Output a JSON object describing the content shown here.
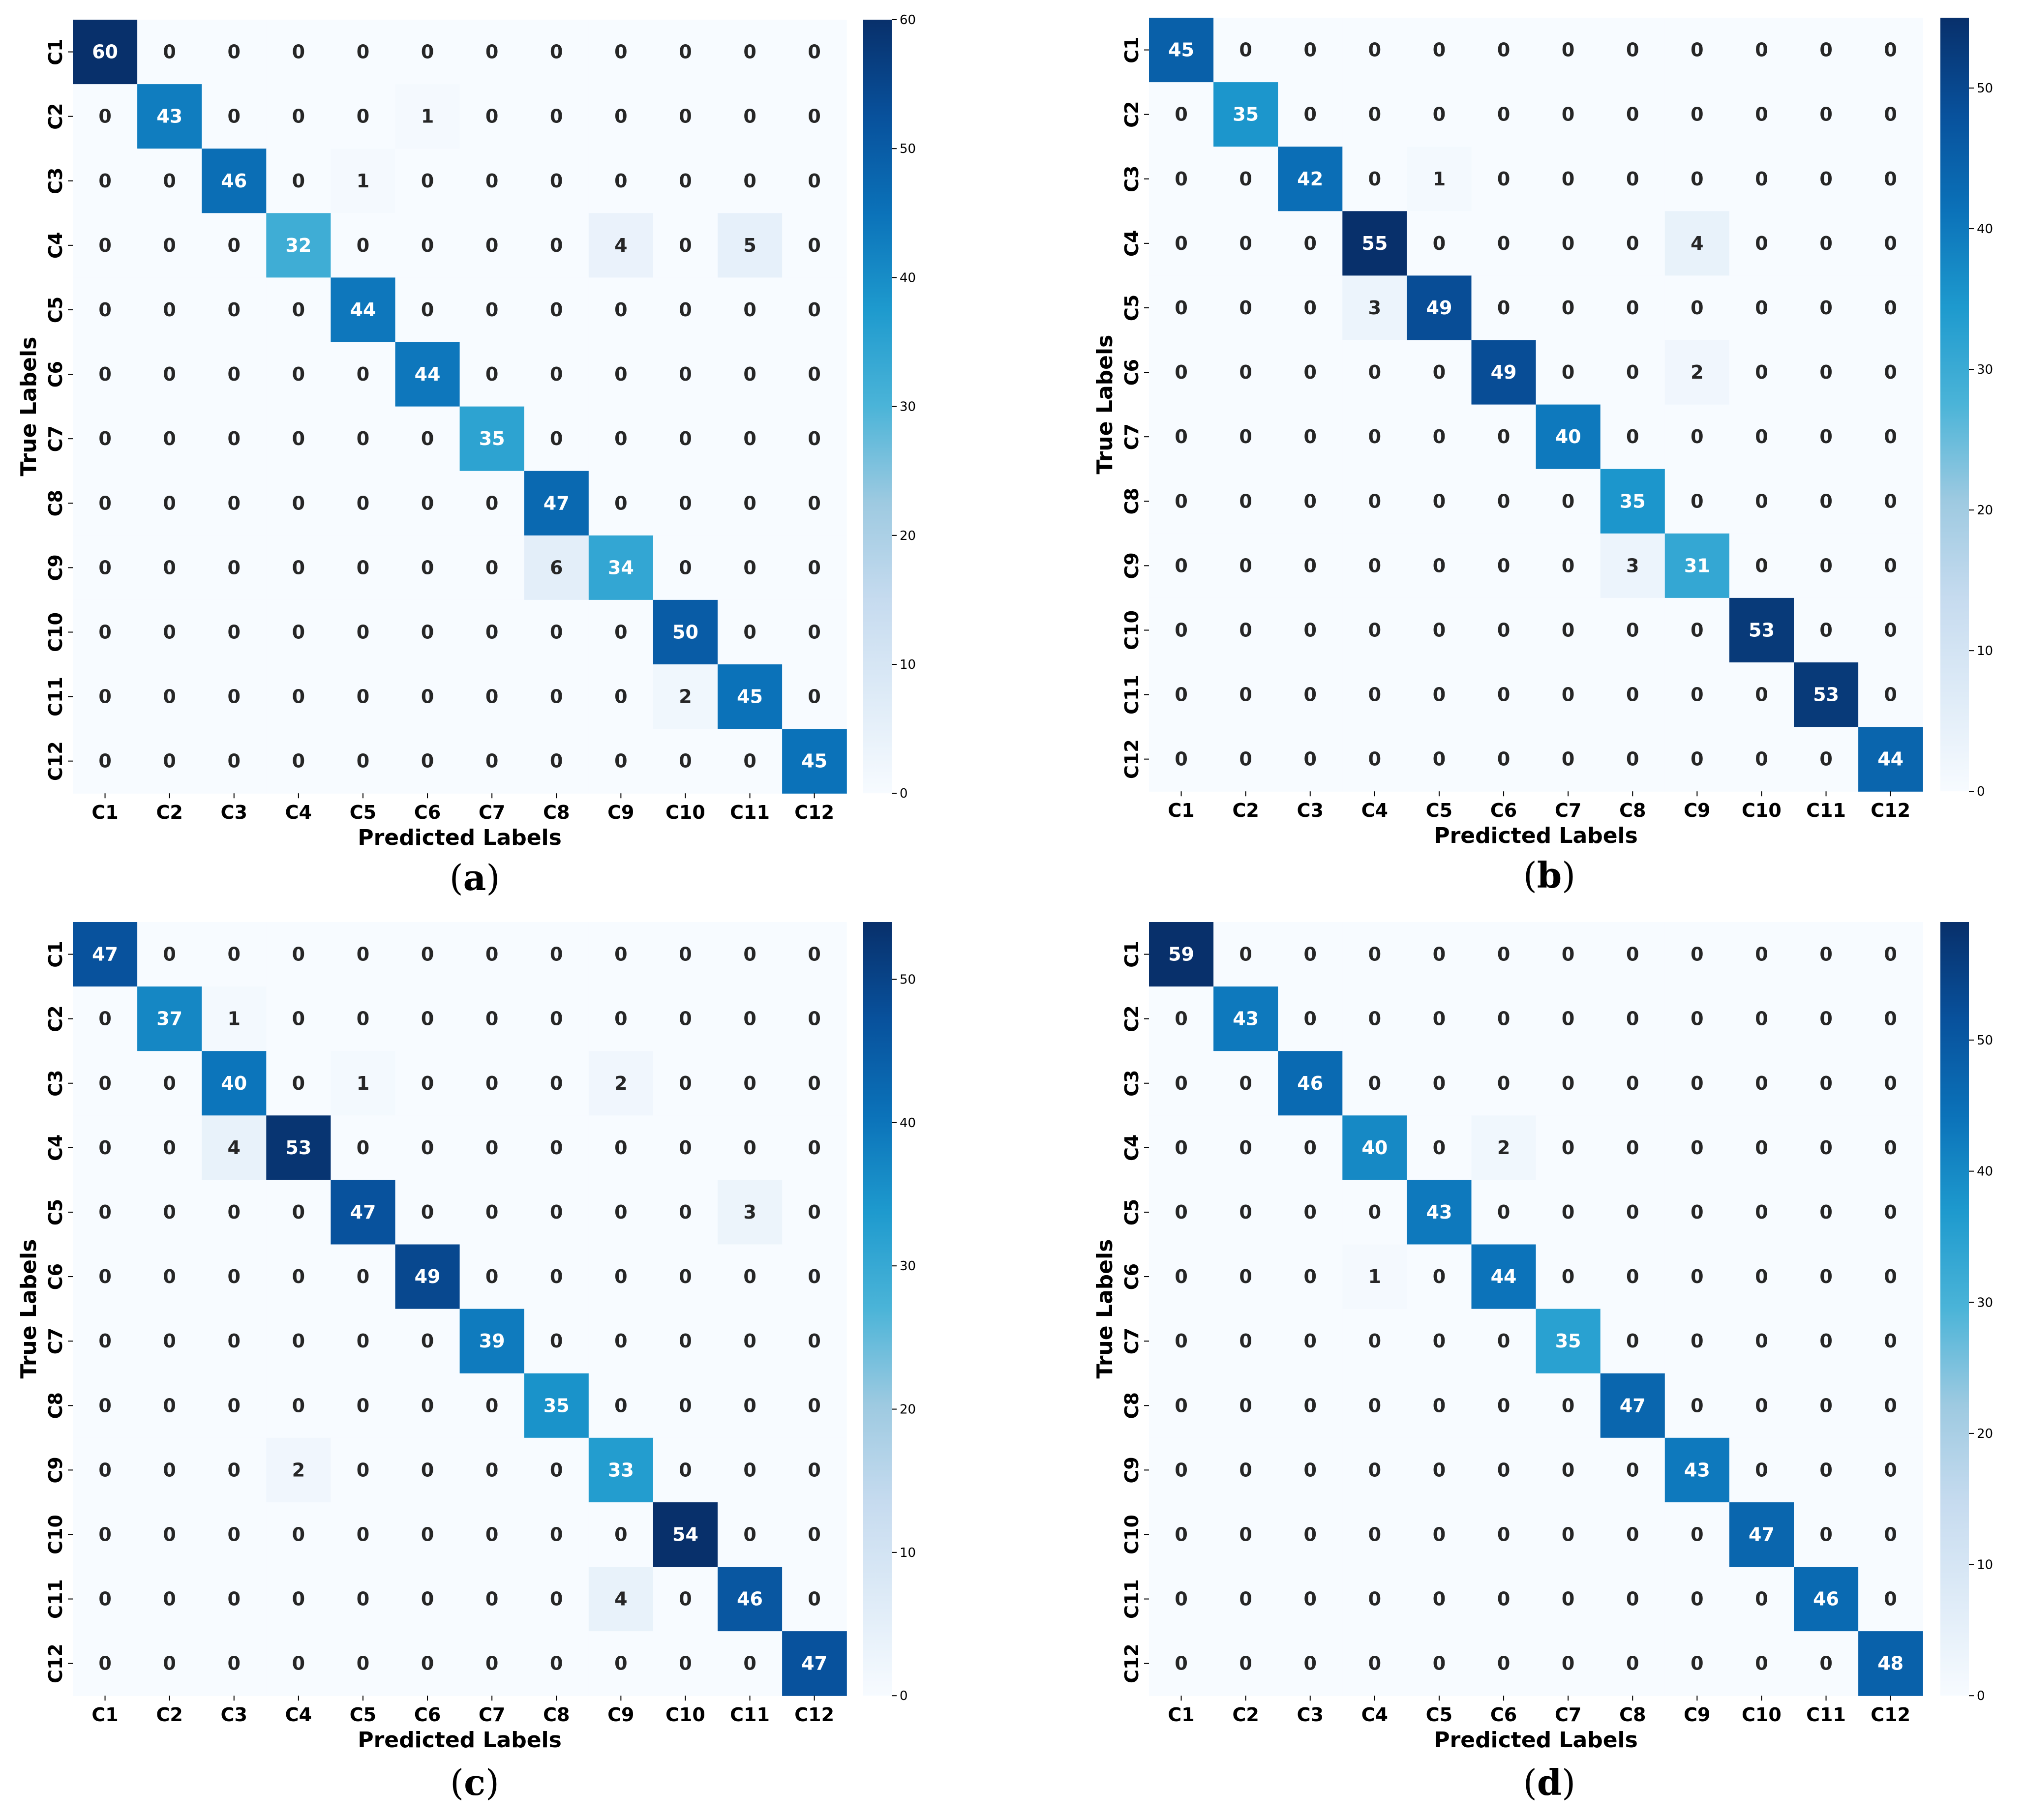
{
  "chart_data": [
    {
      "type": "heatmap",
      "caption_letter": "a",
      "xlabel": "Predicted Labels",
      "ylabel": "True Labels",
      "x_categories": [
        "C1",
        "C2",
        "C3",
        "C4",
        "C5",
        "C6",
        "C7",
        "C8",
        "C9",
        "C10",
        "C11",
        "C12"
      ],
      "y_categories": [
        "C1",
        "C2",
        "C3",
        "C4",
        "C5",
        "C6",
        "C7",
        "C8",
        "C9",
        "C10",
        "C11",
        "C12"
      ],
      "matrix": [
        [
          60,
          0,
          0,
          0,
          0,
          0,
          0,
          0,
          0,
          0,
          0,
          0
        ],
        [
          0,
          43,
          0,
          0,
          0,
          1,
          0,
          0,
          0,
          0,
          0,
          0
        ],
        [
          0,
          0,
          46,
          0,
          1,
          0,
          0,
          0,
          0,
          0,
          0,
          0
        ],
        [
          0,
          0,
          0,
          32,
          0,
          0,
          0,
          0,
          4,
          0,
          5,
          0
        ],
        [
          0,
          0,
          0,
          0,
          44,
          0,
          0,
          0,
          0,
          0,
          0,
          0
        ],
        [
          0,
          0,
          0,
          0,
          0,
          44,
          0,
          0,
          0,
          0,
          0,
          0
        ],
        [
          0,
          0,
          0,
          0,
          0,
          0,
          35,
          0,
          0,
          0,
          0,
          0
        ],
        [
          0,
          0,
          0,
          0,
          0,
          0,
          0,
          47,
          0,
          0,
          0,
          0
        ],
        [
          0,
          0,
          0,
          0,
          0,
          0,
          0,
          6,
          34,
          0,
          0,
          0
        ],
        [
          0,
          0,
          0,
          0,
          0,
          0,
          0,
          0,
          0,
          50,
          0,
          0
        ],
        [
          0,
          0,
          0,
          0,
          0,
          0,
          0,
          0,
          0,
          2,
          45,
          0
        ],
        [
          0,
          0,
          0,
          0,
          0,
          0,
          0,
          0,
          0,
          0,
          0,
          45
        ]
      ],
      "colorbar": {
        "range": [
          0,
          60
        ],
        "ticks": [
          0,
          10,
          20,
          30,
          40,
          50,
          60
        ],
        "colormap": "Blues"
      }
    },
    {
      "type": "heatmap",
      "caption_letter": "b",
      "xlabel": "Predicted Labels",
      "ylabel": "True Labels",
      "x_categories": [
        "C1",
        "C2",
        "C3",
        "C4",
        "C5",
        "C6",
        "C7",
        "C8",
        "C9",
        "C10",
        "C11",
        "C12"
      ],
      "y_categories": [
        "C1",
        "C2",
        "C3",
        "C4",
        "C5",
        "C6",
        "C7",
        "C8",
        "C9",
        "C10",
        "C11",
        "C12"
      ],
      "matrix": [
        [
          45,
          0,
          0,
          0,
          0,
          0,
          0,
          0,
          0,
          0,
          0,
          0
        ],
        [
          0,
          35,
          0,
          0,
          0,
          0,
          0,
          0,
          0,
          0,
          0,
          0
        ],
        [
          0,
          0,
          42,
          0,
          1,
          0,
          0,
          0,
          0,
          0,
          0,
          0
        ],
        [
          0,
          0,
          0,
          55,
          0,
          0,
          0,
          0,
          4,
          0,
          0,
          0
        ],
        [
          0,
          0,
          0,
          3,
          49,
          0,
          0,
          0,
          0,
          0,
          0,
          0
        ],
        [
          0,
          0,
          0,
          0,
          0,
          49,
          0,
          0,
          2,
          0,
          0,
          0
        ],
        [
          0,
          0,
          0,
          0,
          0,
          0,
          40,
          0,
          0,
          0,
          0,
          0
        ],
        [
          0,
          0,
          0,
          0,
          0,
          0,
          0,
          35,
          0,
          0,
          0,
          0
        ],
        [
          0,
          0,
          0,
          0,
          0,
          0,
          0,
          3,
          31,
          0,
          0,
          0
        ],
        [
          0,
          0,
          0,
          0,
          0,
          0,
          0,
          0,
          0,
          53,
          0,
          0
        ],
        [
          0,
          0,
          0,
          0,
          0,
          0,
          0,
          0,
          0,
          0,
          53,
          0
        ],
        [
          0,
          0,
          0,
          0,
          0,
          0,
          0,
          0,
          0,
          0,
          0,
          44
        ]
      ],
      "colorbar": {
        "range": [
          0,
          55
        ],
        "ticks": [
          0,
          10,
          20,
          30,
          40,
          50
        ],
        "colormap": "Blues"
      }
    },
    {
      "type": "heatmap",
      "caption_letter": "c",
      "xlabel": "Predicted Labels",
      "ylabel": "True Labels",
      "x_categories": [
        "C1",
        "C2",
        "C3",
        "C4",
        "C5",
        "C6",
        "C7",
        "C8",
        "C9",
        "C10",
        "C11",
        "C12"
      ],
      "y_categories": [
        "C1",
        "C2",
        "C3",
        "C4",
        "C5",
        "C6",
        "C7",
        "C8",
        "C9",
        "C10",
        "C11",
        "C12"
      ],
      "matrix": [
        [
          47,
          0,
          0,
          0,
          0,
          0,
          0,
          0,
          0,
          0,
          0,
          0
        ],
        [
          0,
          37,
          1,
          0,
          0,
          0,
          0,
          0,
          0,
          0,
          0,
          0
        ],
        [
          0,
          0,
          40,
          0,
          1,
          0,
          0,
          0,
          2,
          0,
          0,
          0
        ],
        [
          0,
          0,
          4,
          53,
          0,
          0,
          0,
          0,
          0,
          0,
          0,
          0
        ],
        [
          0,
          0,
          0,
          0,
          47,
          0,
          0,
          0,
          0,
          0,
          3,
          0
        ],
        [
          0,
          0,
          0,
          0,
          0,
          49,
          0,
          0,
          0,
          0,
          0,
          0
        ],
        [
          0,
          0,
          0,
          0,
          0,
          0,
          39,
          0,
          0,
          0,
          0,
          0
        ],
        [
          0,
          0,
          0,
          0,
          0,
          0,
          0,
          35,
          0,
          0,
          0,
          0
        ],
        [
          0,
          0,
          0,
          2,
          0,
          0,
          0,
          0,
          33,
          0,
          0,
          0
        ],
        [
          0,
          0,
          0,
          0,
          0,
          0,
          0,
          0,
          0,
          54,
          0,
          0
        ],
        [
          0,
          0,
          0,
          0,
          0,
          0,
          0,
          0,
          4,
          0,
          46,
          0
        ],
        [
          0,
          0,
          0,
          0,
          0,
          0,
          0,
          0,
          0,
          0,
          0,
          47
        ]
      ],
      "colorbar": {
        "range": [
          0,
          54
        ],
        "ticks": [
          0,
          10,
          20,
          30,
          40,
          50
        ],
        "colormap": "Blues"
      }
    },
    {
      "type": "heatmap",
      "caption_letter": "d",
      "xlabel": "Predicted Labels",
      "ylabel": "True Labels",
      "x_categories": [
        "C1",
        "C2",
        "C3",
        "C4",
        "C5",
        "C6",
        "C7",
        "C8",
        "C9",
        "C10",
        "C11",
        "C12"
      ],
      "y_categories": [
        "C1",
        "C2",
        "C3",
        "C4",
        "C5",
        "C6",
        "C7",
        "C8",
        "C9",
        "C10",
        "C11",
        "C12"
      ],
      "matrix": [
        [
          59,
          0,
          0,
          0,
          0,
          0,
          0,
          0,
          0,
          0,
          0,
          0
        ],
        [
          0,
          43,
          0,
          0,
          0,
          0,
          0,
          0,
          0,
          0,
          0,
          0
        ],
        [
          0,
          0,
          46,
          0,
          0,
          0,
          0,
          0,
          0,
          0,
          0,
          0
        ],
        [
          0,
          0,
          0,
          40,
          0,
          2,
          0,
          0,
          0,
          0,
          0,
          0
        ],
        [
          0,
          0,
          0,
          0,
          43,
          0,
          0,
          0,
          0,
          0,
          0,
          0
        ],
        [
          0,
          0,
          0,
          1,
          0,
          44,
          0,
          0,
          0,
          0,
          0,
          0
        ],
        [
          0,
          0,
          0,
          0,
          0,
          0,
          35,
          0,
          0,
          0,
          0,
          0
        ],
        [
          0,
          0,
          0,
          0,
          0,
          0,
          0,
          47,
          0,
          0,
          0,
          0
        ],
        [
          0,
          0,
          0,
          0,
          0,
          0,
          0,
          0,
          43,
          0,
          0,
          0
        ],
        [
          0,
          0,
          0,
          0,
          0,
          0,
          0,
          0,
          0,
          47,
          0,
          0
        ],
        [
          0,
          0,
          0,
          0,
          0,
          0,
          0,
          0,
          0,
          0,
          46,
          0
        ],
        [
          0,
          0,
          0,
          0,
          0,
          0,
          0,
          0,
          0,
          0,
          0,
          48
        ]
      ],
      "colorbar": {
        "range": [
          0,
          59
        ],
        "ticks": [
          0,
          10,
          20,
          30,
          40,
          50
        ],
        "colormap": "Blues"
      }
    }
  ]
}
